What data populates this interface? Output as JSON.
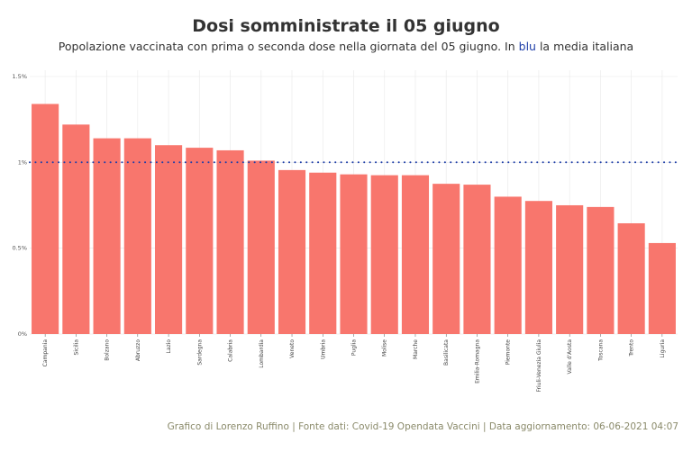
{
  "chart_data": {
    "type": "bar",
    "title": "Dosi somministrate il 05 giugno",
    "subtitle_parts": [
      "Popolazione vaccinata con prima o seconda dose nella giornata del 05 giugno. In ",
      "blu",
      " la media italiana"
    ],
    "caption": "Grafico di Lorenzo Ruffino | Fonte dati: Covid-19 Opendata Vaccini | Data aggiornamento: 06-06-2021 04:07",
    "categories": [
      "Campania",
      "Sicilia",
      "Bolzano",
      "Abruzzo",
      "Lazio",
      "Sardegna",
      "Calabria",
      "Lombardia",
      "Veneto",
      "Umbria",
      "Puglia",
      "Molise",
      "Marche",
      "Basilicata",
      "Emilia-Romagna",
      "Piemonte",
      "Friuli-Venezia Giulia",
      "Valle d'Aosta",
      "Toscana",
      "Trento",
      "Liguria"
    ],
    "values": [
      1.34,
      1.22,
      1.14,
      1.14,
      1.1,
      1.085,
      1.07,
      1.01,
      0.955,
      0.94,
      0.93,
      0.925,
      0.925,
      0.875,
      0.87,
      0.8,
      0.775,
      0.75,
      0.74,
      0.645,
      0.53
    ],
    "unit": "%",
    "ylim": [
      0,
      1.55
    ],
    "yticks": [
      0,
      0.5,
      1,
      1.5
    ],
    "ytick_labels": [
      "0%",
      "0.5%",
      "1%",
      "1.5%"
    ],
    "reference_line": {
      "value": 1.0,
      "color": "#1f3fa8",
      "style": "dotted"
    },
    "bar_color": "#f8766d",
    "grid": true,
    "xlabel": "",
    "ylabel": ""
  }
}
